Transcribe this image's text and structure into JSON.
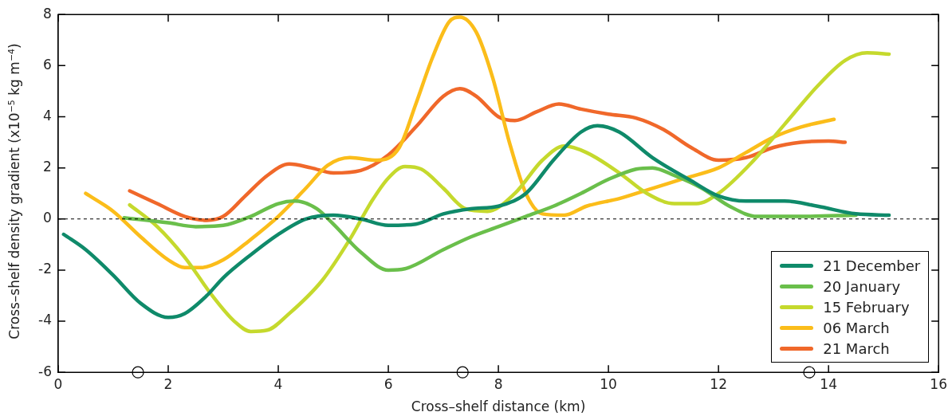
{
  "chart_data": {
    "type": "line",
    "xlabel": "Cross–shelf distance (km)",
    "ylabel": "Cross–shelf density gradient (x10$^{−5}$ kg m$^{−4}$)",
    "xlim": [
      0,
      16
    ],
    "xticks": [
      0,
      2,
      4,
      6,
      8,
      10,
      12,
      14,
      16
    ],
    "ylim": [
      -6,
      8
    ],
    "yticks": [
      -6,
      -4,
      -2,
      0,
      2,
      4,
      6,
      8
    ],
    "legend": "bottom right",
    "marker": "none",
    "line_style": "solid",
    "ref_lines": [
      {
        "axis": "y",
        "value": 0,
        "color": "#000000",
        "line_style": "dashed"
      }
    ],
    "series": [
      {
        "name": "21 December",
        "color": "#0f8a6a",
        "x": [
          0.1,
          0.5,
          1,
          1.5,
          2,
          2.3,
          2.7,
          3,
          3.5,
          4,
          4.5,
          5,
          5.5,
          6,
          6.5,
          7,
          7.5,
          8,
          8.5,
          9,
          9.5,
          9.8,
          10.2,
          10.8,
          11.5,
          12,
          12.5,
          13.2,
          13.8,
          14.5,
          15.1
        ],
        "values": [
          -0.6,
          -1.2,
          -2.2,
          -3.3,
          -3.85,
          -3.7,
          -3.0,
          -2.3,
          -1.4,
          -0.6,
          0.0,
          0.15,
          0.0,
          -0.25,
          -0.2,
          0.2,
          0.4,
          0.5,
          1.0,
          2.3,
          3.4,
          3.65,
          3.4,
          2.4,
          1.5,
          0.9,
          0.7,
          0.7,
          0.5,
          0.2,
          0.15
        ]
      },
      {
        "name": "20 January",
        "color": "#6abf4b",
        "x": [
          1.2,
          2,
          2.5,
          3,
          3.5,
          4,
          4.3,
          4.7,
          5,
          5.5,
          6,
          6.3,
          7,
          7.5,
          8,
          8.5,
          9,
          9.5,
          10,
          10.5,
          10.8,
          11.2,
          11.7,
          12.2,
          12.7,
          13.5,
          14.5
        ],
        "values": [
          0.05,
          -0.15,
          -0.3,
          -0.25,
          0.1,
          0.6,
          0.7,
          0.4,
          -0.2,
          -1.3,
          -2.0,
          -1.95,
          -1.2,
          -0.7,
          -0.3,
          0.1,
          0.5,
          1.0,
          1.55,
          1.95,
          2.0,
          1.7,
          1.2,
          0.5,
          0.1,
          0.1,
          0.15
        ]
      },
      {
        "name": "15 February",
        "color": "#c5d92d",
        "x": [
          1.3,
          1.8,
          2.3,
          2.8,
          3.2,
          3.5,
          3.8,
          4.2,
          4.8,
          5.3,
          5.7,
          6,
          6.3,
          6.6,
          7,
          7.4,
          7.8,
          8.3,
          8.8,
          9.2,
          9.6,
          10.2,
          10.7,
          11.2,
          11.6,
          12,
          12.6,
          13.2,
          13.8,
          14.3,
          14.7,
          15.1
        ],
        "values": [
          0.55,
          -0.3,
          -1.5,
          -3.0,
          -4.0,
          -4.4,
          -4.35,
          -3.7,
          -2.4,
          -0.8,
          0.7,
          1.6,
          2.05,
          1.95,
          1.2,
          0.4,
          0.3,
          1.0,
          2.3,
          2.85,
          2.6,
          1.8,
          1.0,
          0.6,
          0.6,
          1.0,
          2.2,
          3.7,
          5.2,
          6.2,
          6.5,
          6.45
        ]
      },
      {
        "name": "06 March",
        "color": "#fbbd1a",
        "x": [
          0.5,
          1,
          1.5,
          2,
          2.3,
          2.6,
          3,
          3.5,
          4,
          4.5,
          4.9,
          5.3,
          5.8,
          6.2,
          6.5,
          6.8,
          7.1,
          7.3,
          7.6,
          7.9,
          8.2,
          8.5,
          8.8,
          9.2,
          9.6,
          10.2,
          10.8,
          11.4,
          12,
          12.5,
          13,
          13.5,
          14.1
        ],
        "values": [
          1.0,
          0.3,
          -0.7,
          -1.6,
          -1.9,
          -1.9,
          -1.6,
          -0.8,
          0.1,
          1.2,
          2.1,
          2.4,
          2.3,
          2.8,
          4.5,
          6.3,
          7.7,
          7.9,
          7.3,
          5.5,
          3.0,
          1.0,
          0.2,
          0.15,
          0.5,
          0.8,
          1.2,
          1.6,
          2.0,
          2.6,
          3.2,
          3.6,
          3.9
        ]
      },
      {
        "name": "21 March",
        "color": "#f0682a",
        "x": [
          1.3,
          1.8,
          2.3,
          2.7,
          3,
          3.4,
          3.8,
          4.2,
          4.6,
          5,
          5.5,
          6,
          6.5,
          7,
          7.3,
          7.6,
          8,
          8.3,
          8.7,
          9.1,
          9.5,
          10,
          10.5,
          11,
          11.5,
          12,
          12.5,
          13,
          13.5,
          14,
          14.3
        ],
        "values": [
          1.1,
          0.6,
          0.1,
          -0.05,
          0.1,
          0.9,
          1.7,
          2.15,
          2.0,
          1.8,
          1.9,
          2.5,
          3.6,
          4.8,
          5.1,
          4.8,
          4.0,
          3.85,
          4.2,
          4.5,
          4.3,
          4.1,
          3.95,
          3.5,
          2.8,
          2.3,
          2.4,
          2.8,
          3.0,
          3.05,
          3.0
        ]
      },
      {
        "type": "scatter",
        "marker": "circle",
        "color": "#ffffff",
        "x": [
          1.45,
          7.35,
          13.65
        ],
        "values": [
          -6,
          -6,
          -6
        ]
      }
    ]
  }
}
